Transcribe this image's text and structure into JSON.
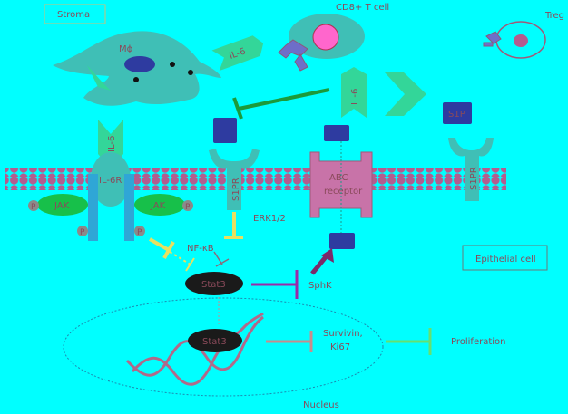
{
  "labels": {
    "stroma": "Stroma",
    "cd8": "CD8+ T cell",
    "treg": "Treg",
    "macrophage": "Mϕ",
    "il6_a": "IL-6",
    "il6_b": "IL-6",
    "il6_c": "IL-6",
    "s1p": "S1P",
    "il6r": "IL-6R",
    "s1pr_left": "S1PR",
    "s1pr_right": "S1PR",
    "abc": "ABC\nreceptor",
    "jak_left": "JAK",
    "jak_right": "JAK",
    "p": "P",
    "erk": "ERK1/2",
    "nfkb": "NF-κB",
    "stat3_a": "Stat3",
    "stat3_b": "Stat3",
    "sphk": "SphK",
    "survivin": "Survivin,\nKi67",
    "proliferation": "Proliferation",
    "epithelial": "Epithelial cell",
    "nucleus": "Nucleus"
  },
  "colors": {
    "background": "#00ffff",
    "cell_teal": "#3fbfb6",
    "membrane": "#b45c8e",
    "green_ligand": "#33d699",
    "dark_blue": "#2e3ba0",
    "abc_pink": "#c873a8",
    "jak_green": "#17c04a",
    "stat_dark": "#1a1a1a",
    "text_red": "#b03050",
    "arrow_green": "#1c9a3a",
    "arrow_yellow": "#e8e060",
    "arrow_purple": "#9a2aa8",
    "arrow_pink": "#c88c8c",
    "arrow_lime": "#66e070"
  }
}
